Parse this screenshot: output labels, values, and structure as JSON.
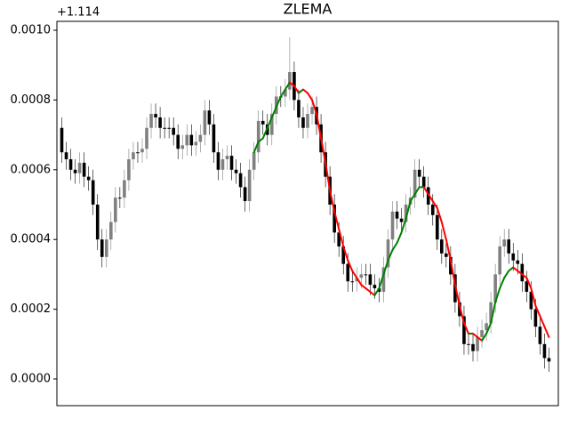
{
  "chart_data": {
    "type": "candlestick",
    "title": "ZLEMA",
    "offset_label": "+1.114",
    "ylim": [
      -7.65e-05,
      0.0010255
    ],
    "yticks": [
      {
        "value": 0,
        "label": "0.0000"
      },
      {
        "value": 0.0002,
        "label": "0.0002"
      },
      {
        "value": 0.0004,
        "label": "0.0004"
      },
      {
        "value": 0.0006,
        "label": "0.0006"
      },
      {
        "value": 0.0008,
        "label": "0.0008"
      },
      {
        "value": 0.001,
        "label": "0.0010"
      }
    ],
    "up_color": "#808080",
    "down_color": "#000000",
    "zlema_up_color": "green",
    "zlema_down_color": "red",
    "open": [
      0.00072,
      0.00065,
      0.00063,
      0.0006,
      0.00059,
      0.00062,
      0.00058,
      0.00057,
      0.0005,
      0.0004,
      0.00035,
      0.0004,
      0.00045,
      0.00052,
      0.00052,
      0.00057,
      0.00063,
      0.00065,
      0.00065,
      0.00066,
      0.00072,
      0.00076,
      0.00075,
      0.00072,
      0.00072,
      0.00072,
      0.0007,
      0.00066,
      0.00067,
      0.0007,
      0.00067,
      0.00068,
      0.0007,
      0.00077,
      0.00073,
      0.00065,
      0.0006,
      0.00063,
      0.00064,
      0.0006,
      0.00059,
      0.00055,
      0.00051,
      0.0006,
      0.00065,
      0.00074,
      0.00073,
      0.0007,
      0.00076,
      0.00081,
      0.00081,
      0.00083,
      0.00088,
      0.0008,
      0.00075,
      0.00072,
      0.00076,
      0.00078,
      0.00073,
      0.00065,
      0.00058,
      0.0005,
      0.00042,
      0.00038,
      0.00033,
      0.00028,
      0.00028,
      0.00029,
      0.0003,
      0.0003,
      0.00027,
      0.00026,
      0.00025,
      0.00032,
      0.0004,
      0.00048,
      0.00046,
      0.00045,
      0.0005,
      0.00052,
      0.0006,
      0.00058,
      0.00055,
      0.0005,
      0.00047,
      0.0004,
      0.00036,
      0.00035,
      0.0003,
      0.00022,
      0.00018,
      0.0001,
      0.0001,
      8e-05,
      0.00012,
      0.00014,
      0.00016,
      0.00022,
      0.0003,
      0.00038,
      0.0004,
      0.00036,
      0.00034,
      0.00033,
      0.00028,
      0.00025,
      0.0002,
      0.00015,
      0.0001,
      6e-05
    ],
    "high": [
      0.00075,
      0.00068,
      0.00066,
      0.00063,
      0.00065,
      0.00065,
      0.00061,
      0.0006,
      0.00053,
      0.00043,
      0.00043,
      0.00048,
      0.00055,
      0.00055,
      0.0006,
      0.00066,
      0.00068,
      0.00068,
      0.00069,
      0.00075,
      0.00079,
      0.00079,
      0.00078,
      0.00075,
      0.00075,
      0.00075,
      0.00073,
      0.0007,
      0.00073,
      0.00073,
      0.00071,
      0.00073,
      0.0008,
      0.0008,
      0.00076,
      0.00068,
      0.00066,
      0.00067,
      0.00067,
      0.00063,
      0.00062,
      0.00058,
      0.00063,
      0.00068,
      0.00077,
      0.00077,
      0.00076,
      0.00079,
      0.00084,
      0.00084,
      0.00086,
      0.00098,
      0.00091,
      0.00083,
      0.00078,
      0.00079,
      0.00081,
      0.00081,
      0.00076,
      0.00068,
      0.00061,
      0.00053,
      0.00045,
      0.00041,
      0.00036,
      0.00031,
      0.00032,
      0.00033,
      0.00033,
      0.00033,
      0.0003,
      0.00029,
      0.00035,
      0.00043,
      0.00051,
      0.00051,
      0.00049,
      0.00053,
      0.00055,
      0.00063,
      0.00063,
      0.00061,
      0.00058,
      0.00053,
      0.0005,
      0.00043,
      0.00039,
      0.00038,
      0.00033,
      0.00025,
      0.00021,
      0.00013,
      0.00013,
      0.00015,
      0.00017,
      0.00019,
      0.00025,
      0.00033,
      0.00041,
      0.00043,
      0.00043,
      0.00039,
      0.00037,
      0.00036,
      0.00031,
      0.00028,
      0.00023,
      0.00018,
      0.00013,
      9e-05
    ],
    "low": [
      0.00062,
      0.0006,
      0.00057,
      0.00056,
      0.00056,
      0.00055,
      0.00054,
      0.00047,
      0.00037,
      0.00032,
      0.00032,
      0.00037,
      0.00042,
      0.00049,
      0.00049,
      0.00054,
      0.0006,
      0.00062,
      0.00062,
      0.00063,
      0.00069,
      0.00072,
      0.00069,
      0.00069,
      0.00069,
      0.00067,
      0.00063,
      0.00063,
      0.00064,
      0.00064,
      0.00064,
      0.00065,
      0.00067,
      0.0007,
      0.00062,
      0.00057,
      0.00057,
      0.0006,
      0.00057,
      0.00056,
      0.00052,
      0.00048,
      0.00048,
      0.00057,
      0.00062,
      0.0007,
      0.00067,
      0.00067,
      0.00073,
      0.00078,
      0.00078,
      0.0008,
      0.00077,
      0.00072,
      0.00069,
      0.00069,
      0.00073,
      0.0007,
      0.00062,
      0.00055,
      0.00047,
      0.00039,
      0.00035,
      0.0003,
      0.00025,
      0.00025,
      0.00025,
      0.00026,
      0.00027,
      0.00024,
      0.00023,
      0.00022,
      0.00022,
      0.00029,
      0.00037,
      0.00043,
      0.00042,
      0.00042,
      0.00047,
      0.00049,
      0.00055,
      0.00052,
      0.00047,
      0.00044,
      0.00037,
      0.00033,
      0.00032,
      0.00027,
      0.00019,
      0.00015,
      7e-05,
      7e-05,
      5e-05,
      5e-05,
      9e-05,
      0.00011,
      0.00013,
      0.00019,
      0.00027,
      0.00035,
      0.00033,
      0.00031,
      0.0003,
      0.00025,
      0.00022,
      0.00017,
      0.00012,
      7e-05,
      3e-05,
      2e-05
    ],
    "close": [
      0.00065,
      0.00063,
      0.0006,
      0.00059,
      0.00062,
      0.00058,
      0.00057,
      0.0005,
      0.0004,
      0.00035,
      0.0004,
      0.00045,
      0.00052,
      0.00052,
      0.00057,
      0.00063,
      0.00065,
      0.00065,
      0.00066,
      0.00072,
      0.00076,
      0.00075,
      0.00072,
      0.00072,
      0.00072,
      0.0007,
      0.00066,
      0.00067,
      0.0007,
      0.00067,
      0.00068,
      0.0007,
      0.00077,
      0.00073,
      0.00065,
      0.0006,
      0.00063,
      0.00064,
      0.0006,
      0.00059,
      0.00055,
      0.00051,
      0.0006,
      0.00065,
      0.00074,
      0.00073,
      0.0007,
      0.00076,
      0.00081,
      0.00081,
      0.00083,
      0.00088,
      0.0008,
      0.00075,
      0.00072,
      0.00076,
      0.00078,
      0.00073,
      0.00065,
      0.00058,
      0.0005,
      0.00042,
      0.00038,
      0.00033,
      0.00028,
      0.00028,
      0.00029,
      0.0003,
      0.0003,
      0.00027,
      0.00026,
      0.00025,
      0.00032,
      0.0004,
      0.00048,
      0.00046,
      0.00045,
      0.0005,
      0.00052,
      0.0006,
      0.00058,
      0.00055,
      0.0005,
      0.00047,
      0.0004,
      0.00036,
      0.00035,
      0.0003,
      0.00022,
      0.00018,
      0.0001,
      0.0001,
      8e-05,
      0.00012,
      0.00014,
      0.00016,
      0.00022,
      0.0003,
      0.00038,
      0.0004,
      0.00036,
      0.00034,
      0.00033,
      0.00028,
      0.00025,
      0.0002,
      0.00015,
      0.0001,
      6e-05,
      5e-05
    ],
    "zlema": [
      null,
      null,
      null,
      null,
      null,
      null,
      null,
      null,
      null,
      null,
      null,
      null,
      null,
      null,
      null,
      null,
      null,
      null,
      null,
      null,
      null,
      null,
      null,
      null,
      null,
      null,
      null,
      null,
      null,
      null,
      null,
      null,
      null,
      null,
      null,
      null,
      null,
      null,
      null,
      null,
      null,
      null,
      null,
      0.00065,
      0.00068,
      0.00069,
      0.00072,
      0.00075,
      0.00078,
      0.00081,
      0.00083,
      0.00085,
      0.00084,
      0.00082,
      0.00083,
      0.00082,
      0.0008,
      0.00076,
      0.00069,
      0.00062,
      0.00054,
      0.00048,
      0.00043,
      0.00038,
      0.00034,
      0.00031,
      0.00029,
      0.00027,
      0.00026,
      0.00025,
      0.00024,
      0.00026,
      0.0003,
      0.00034,
      0.00037,
      0.00039,
      0.00042,
      0.00046,
      0.00051,
      0.00053,
      0.00055,
      0.00055,
      0.00053,
      0.00051,
      0.00049,
      0.00045,
      0.0004,
      0.00034,
      0.00027,
      0.00021,
      0.00016,
      0.00013,
      0.00013,
      0.00012,
      0.00011,
      0.00013,
      0.00016,
      0.00022,
      0.00026,
      0.00029,
      0.00031,
      0.00032,
      0.00031,
      0.0003,
      0.00029,
      0.00026,
      0.00021,
      0.00018,
      0.00015,
      0.00012
    ]
  }
}
